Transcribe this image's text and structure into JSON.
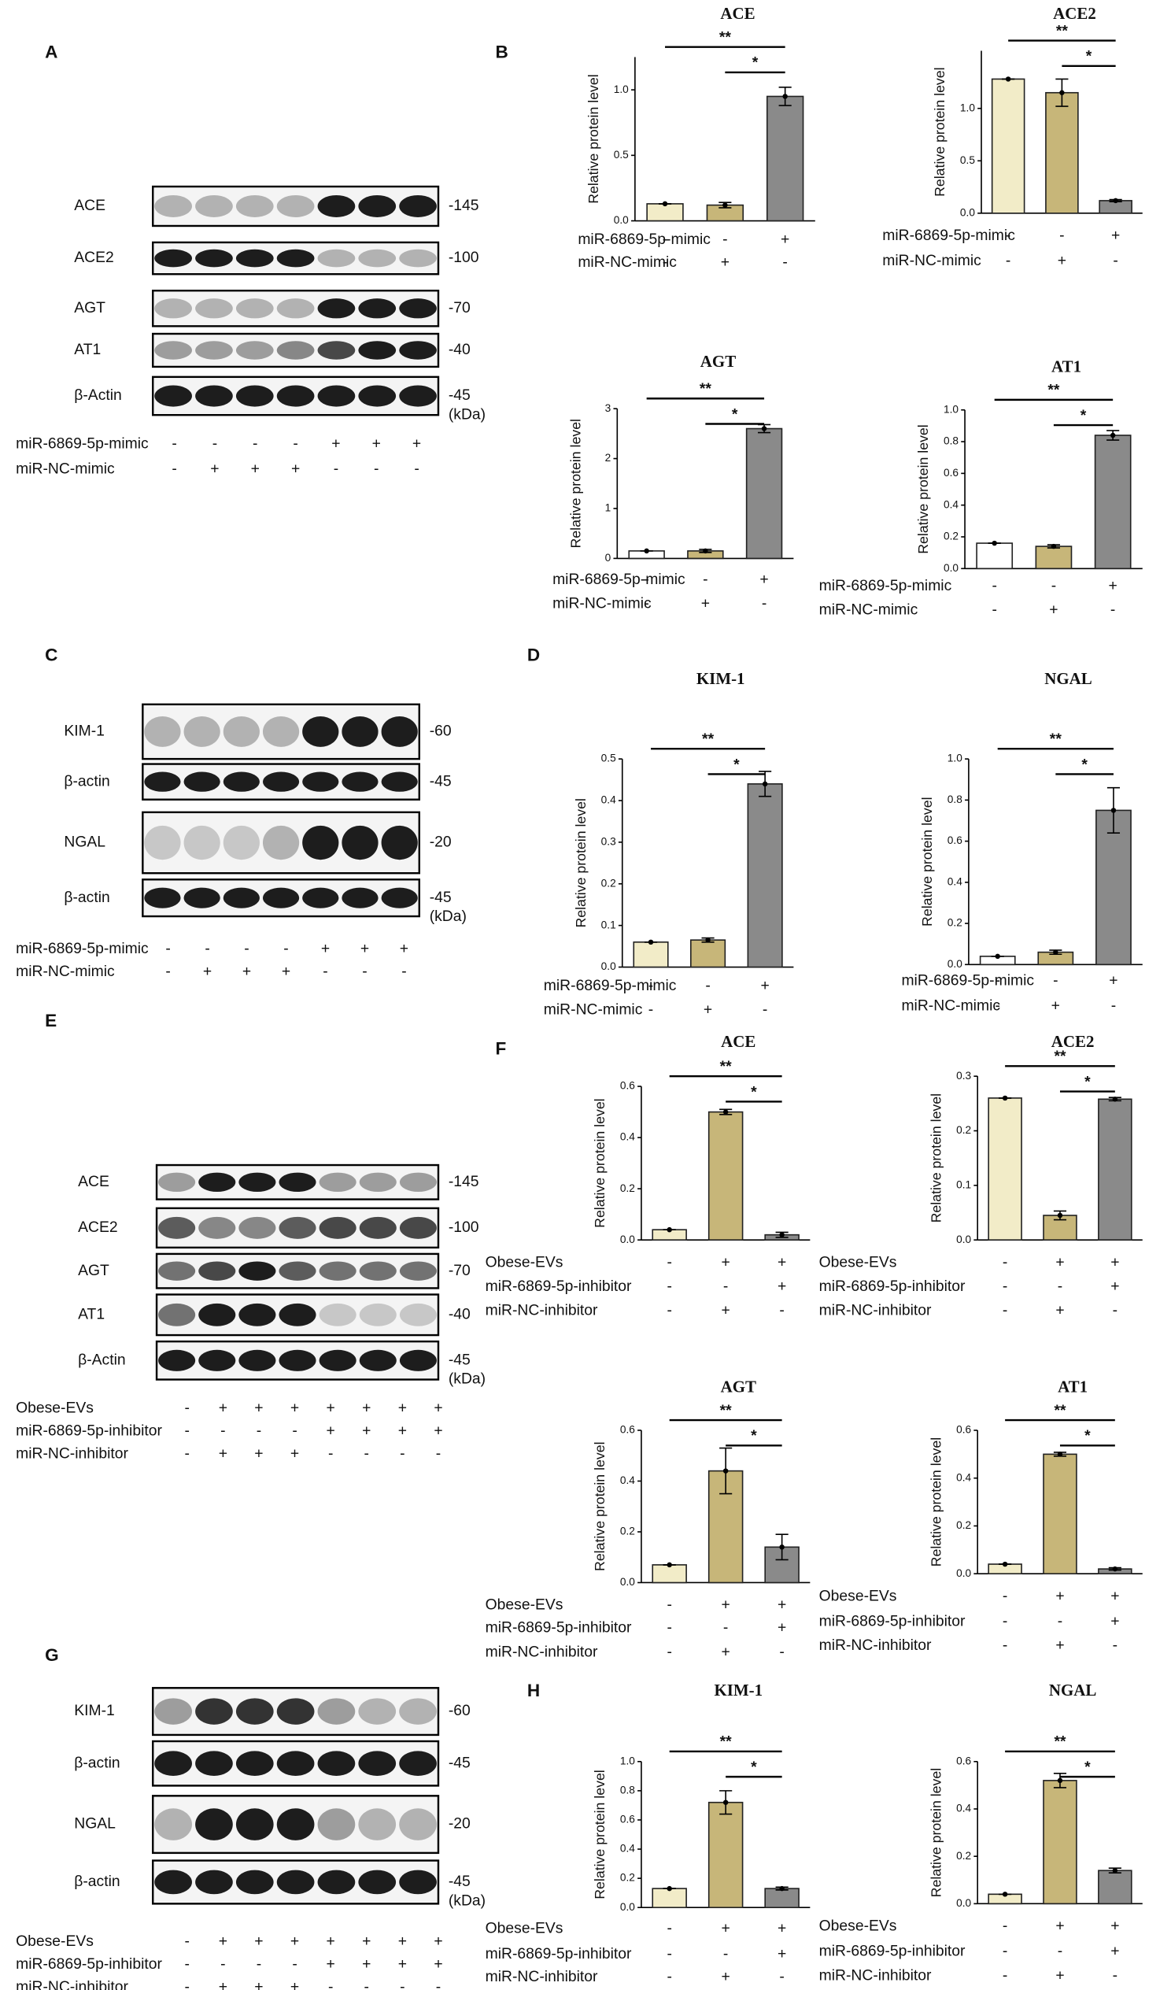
{
  "panel_labels": [
    "A",
    "B",
    "C",
    "D",
    "E",
    "F",
    "G",
    "H"
  ],
  "blots": [
    {
      "rows": [
        {
          "label": "ACE",
          "kda": "-145"
        },
        {
          "label": "ACE2",
          "kda": "-100"
        },
        {
          "label": "AGT",
          "kda": "-70"
        },
        {
          "label": "AT1",
          "kda": "-40"
        },
        {
          "label": "β-Actin",
          "kda": "-45"
        }
      ],
      "unit": "(kDa)",
      "conditions": [
        {
          "label": "miR-6869-5p-mimic",
          "signs": [
            "-",
            "-",
            "-",
            "-",
            "+",
            "+",
            "+"
          ]
        },
        {
          "label": "miR-NC-mimic",
          "signs": [
            "-",
            "+",
            "+",
            "+",
            "-",
            "-",
            "-"
          ]
        }
      ]
    },
    {
      "rows": [
        {
          "label": "KIM-1",
          "kda": "-60"
        },
        {
          "label": "β-actin",
          "kda": "-45"
        },
        {
          "label": "NGAL",
          "kda": "-20"
        },
        {
          "label": "β-actin",
          "kda": "-45"
        }
      ],
      "unit": "(kDa)",
      "conditions": [
        {
          "label": "miR-6869-5p-mimic",
          "signs": [
            "-",
            "-",
            "-",
            "-",
            "+",
            "+",
            "+"
          ]
        },
        {
          "label": "miR-NC-mimic",
          "signs": [
            "-",
            "+",
            "+",
            "+",
            "-",
            "-",
            "-"
          ]
        }
      ]
    },
    {
      "rows": [
        {
          "label": "ACE",
          "kda": "-145"
        },
        {
          "label": "ACE2",
          "kda": "-100"
        },
        {
          "label": "AGT",
          "kda": "-70"
        },
        {
          "label": "AT1",
          "kda": "-40"
        },
        {
          "label": "β-Actin",
          "kda": "-45"
        }
      ],
      "unit": "(kDa)",
      "conditions": [
        {
          "label": "Obese-EVs",
          "signs": [
            "-",
            "+",
            "+",
            "+",
            "+",
            "+",
            "+",
            "+"
          ]
        },
        {
          "label": "miR-6869-5p-inhibitor",
          "signs": [
            "-",
            "-",
            "-",
            "-",
            "+",
            "+",
            "+",
            "+"
          ]
        },
        {
          "label": "miR-NC-inhibitor",
          "signs": [
            "-",
            "+",
            "+",
            "+",
            "-",
            "-",
            "-",
            "-"
          ]
        }
      ]
    },
    {
      "rows": [
        {
          "label": "KIM-1",
          "kda": "-60"
        },
        {
          "label": "β-actin",
          "kda": "-45"
        },
        {
          "label": "NGAL",
          "kda": "-20"
        },
        {
          "label": "β-actin",
          "kda": "-45"
        }
      ],
      "unit": "(kDa)",
      "conditions": [
        {
          "label": "Obese-EVs",
          "signs": [
            "-",
            "+",
            "+",
            "+",
            "+",
            "+",
            "+",
            "+"
          ]
        },
        {
          "label": "miR-6869-5p-inhibitor",
          "signs": [
            "-",
            "-",
            "-",
            "-",
            "+",
            "+",
            "+",
            "+"
          ]
        },
        {
          "label": "miR-NC-inhibitor",
          "signs": [
            "-",
            "+",
            "+",
            "+",
            "-",
            "-",
            "-",
            "-"
          ]
        }
      ]
    }
  ],
  "chart_data": [
    {
      "type": "bar",
      "title": "ACE",
      "ylabel": "Relative protein level",
      "values": [
        0.13,
        0.12,
        0.95
      ],
      "errors": [
        0,
        0.02,
        0.07
      ],
      "colors": [
        "#f2ecc8",
        "#c7b679",
        "#8a8a8a"
      ],
      "ylim": [
        0,
        1.25
      ],
      "yticks": [
        {
          "value": 0,
          "label": "0.0"
        },
        0.5,
        {
          "value": 1,
          "label": "1.0"
        }
      ],
      "annotations": [
        "**",
        "*"
      ],
      "conditions": [
        {
          "label": "miR-6869-5p-mimic",
          "signs": [
            "-",
            "-",
            "+"
          ]
        },
        {
          "label": "miR-NC-mimic",
          "signs": [
            "-",
            "+",
            "-"
          ]
        }
      ]
    },
    {
      "type": "bar",
      "title": "ACE2",
      "ylabel": "Relative protein level",
      "values": [
        1.28,
        1.15,
        0.12
      ],
      "errors": [
        0,
        0.13,
        0.01
      ],
      "colors": [
        "#f2ecc8",
        "#c7b679",
        "#8a8a8a"
      ],
      "ylim": [
        0,
        1.55
      ],
      "yticks": [
        {
          "value": 0,
          "label": "0.0"
        },
        0.5,
        {
          "value": 1,
          "label": "1.0"
        }
      ],
      "annotations": [
        "**",
        "*"
      ],
      "conditions": [
        {
          "label": "miR-6869-5p-mimic",
          "signs": [
            "-",
            "-",
            "+"
          ]
        },
        {
          "label": "miR-NC-mimic",
          "signs": [
            "-",
            "+",
            "-"
          ]
        }
      ]
    },
    {
      "type": "bar",
      "title": "AGT",
      "ylabel": "Relative protein level",
      "values": [
        0.15,
        0.15,
        2.6
      ],
      "errors": [
        0,
        0.03,
        0.08
      ],
      "colors": [
        "#ffffff",
        "#c7b679",
        "#8a8a8a"
      ],
      "ylim": [
        0,
        3
      ],
      "yticks": [
        0,
        1,
        2,
        3
      ],
      "annotations": [
        "**",
        "*"
      ],
      "conditions": [
        {
          "label": "miR-6869-5p-mimic",
          "signs": [
            "-",
            "-",
            "+"
          ]
        },
        {
          "label": "miR-NC-mimic",
          "signs": [
            "-",
            "+",
            "-"
          ]
        }
      ]
    },
    {
      "type": "bar",
      "title": "AT1",
      "ylabel": "Relative protein level",
      "values": [
        0.16,
        0.14,
        0.84
      ],
      "errors": [
        0,
        0.01,
        0.03
      ],
      "colors": [
        "#ffffff",
        "#c7b679",
        "#8a8a8a"
      ],
      "ylim": [
        0,
        1
      ],
      "yticks": [
        {
          "value": 0,
          "label": "0.0"
        },
        0.2,
        0.4,
        0.6,
        0.8,
        {
          "value": 1,
          "label": "1.0"
        }
      ],
      "annotations": [
        "**",
        "*"
      ],
      "conditions": [
        {
          "label": "miR-6869-5p-mimic",
          "signs": [
            "-",
            "-",
            "+"
          ]
        },
        {
          "label": "miR-NC-mimic",
          "signs": [
            "-",
            "+",
            "-"
          ]
        }
      ]
    },
    {
      "type": "bar",
      "title": "KIM-1",
      "ylabel": "Relative protein level",
      "values": [
        0.06,
        0.065,
        0.44
      ],
      "errors": [
        0,
        0.005,
        0.03
      ],
      "colors": [
        "#f2ecc8",
        "#c7b679",
        "#8a8a8a"
      ],
      "ylim": [
        0,
        0.5
      ],
      "yticks": [
        {
          "value": 0,
          "label": "0.0"
        },
        0.1,
        0.2,
        0.3,
        0.4,
        0.5
      ],
      "annotations": [
        "**",
        "*"
      ],
      "conditions": [
        {
          "label": "miR-6869-5p-mimic",
          "signs": [
            "-",
            "-",
            "+"
          ]
        },
        {
          "label": "miR-NC-mimic",
          "signs": [
            "-",
            "+",
            "-"
          ]
        }
      ]
    },
    {
      "type": "bar",
      "title": "NGAL",
      "ylabel": "Relative protein level",
      "values": [
        0.04,
        0.06,
        0.75
      ],
      "errors": [
        0,
        0.01,
        0.11
      ],
      "colors": [
        "#ffffff",
        "#c7b679",
        "#8a8a8a"
      ],
      "ylim": [
        0,
        1
      ],
      "yticks": [
        {
          "value": 0,
          "label": "0.0"
        },
        0.2,
        0.4,
        0.6,
        0.8,
        {
          "value": 1,
          "label": "1.0"
        }
      ],
      "annotations": [
        "**",
        "*"
      ],
      "conditions": [
        {
          "label": "miR-6869-5p-mimic",
          "signs": [
            "-",
            "-",
            "+"
          ]
        },
        {
          "label": "miR-NC-mimic",
          "signs": [
            "-",
            "+",
            "-"
          ]
        }
      ]
    },
    {
      "type": "bar",
      "title": "ACE",
      "ylabel": "Relative protein level",
      "values": [
        0.04,
        0.5,
        0.02
      ],
      "errors": [
        0,
        0.01,
        0.01
      ],
      "colors": [
        "#f2ecc8",
        "#c7b679",
        "#8a8a8a"
      ],
      "ylim": [
        0,
        0.6
      ],
      "yticks": [
        {
          "value": 0,
          "label": "0.0"
        },
        0.2,
        0.4,
        0.6
      ],
      "annotations": [
        "**",
        "*"
      ],
      "conditions": [
        {
          "label": "Obese-EVs",
          "signs": [
            "-",
            "+",
            "+"
          ]
        },
        {
          "label": "miR-6869-5p-inhibitor",
          "signs": [
            "-",
            "-",
            "+"
          ]
        },
        {
          "label": "miR-NC-inhibitor",
          "signs": [
            "-",
            "+",
            "-"
          ]
        }
      ]
    },
    {
      "type": "bar",
      "title": "ACE2",
      "ylabel": "Relative protein level",
      "values": [
        0.26,
        0.045,
        0.258
      ],
      "errors": [
        0,
        0.008,
        0.003
      ],
      "colors": [
        "#f2ecc8",
        "#c7b679",
        "#8a8a8a"
      ],
      "ylim": [
        0,
        0.3
      ],
      "yticks": [
        {
          "value": 0,
          "label": "0.0"
        },
        0.1,
        0.2,
        0.3
      ],
      "annotations": [
        "**",
        "*"
      ],
      "conditions": [
        {
          "label": "Obese-EVs",
          "signs": [
            "-",
            "+",
            "+"
          ]
        },
        {
          "label": "miR-6869-5p-inhibitor",
          "signs": [
            "-",
            "-",
            "+"
          ]
        },
        {
          "label": "miR-NC-inhibitor",
          "signs": [
            "-",
            "+",
            "-"
          ]
        }
      ]
    },
    {
      "type": "bar",
      "title": "AGT",
      "ylabel": "Relative protein level",
      "values": [
        0.07,
        0.44,
        0.14
      ],
      "errors": [
        0,
        0.09,
        0.05
      ],
      "colors": [
        "#f2ecc8",
        "#c7b679",
        "#8a8a8a"
      ],
      "ylim": [
        0,
        0.6
      ],
      "yticks": [
        {
          "value": 0,
          "label": "0.0"
        },
        0.2,
        0.4,
        0.6
      ],
      "annotations": [
        "**",
        "*"
      ],
      "conditions": [
        {
          "label": "Obese-EVs",
          "signs": [
            "-",
            "+",
            "+"
          ]
        },
        {
          "label": "miR-6869-5p-inhibitor",
          "signs": [
            "-",
            "-",
            "+"
          ]
        },
        {
          "label": "miR-NC-inhibitor",
          "signs": [
            "-",
            "+",
            "-"
          ]
        }
      ]
    },
    {
      "type": "bar",
      "title": "AT1",
      "ylabel": "Relative protein level",
      "values": [
        0.04,
        0.5,
        0.02
      ],
      "errors": [
        0,
        0.008,
        0.005
      ],
      "colors": [
        "#f2ecc8",
        "#c7b679",
        "#8a8a8a"
      ],
      "ylim": [
        0,
        0.6
      ],
      "yticks": [
        {
          "value": 0,
          "label": "0.0"
        },
        0.2,
        0.4,
        0.6
      ],
      "annotations": [
        "**",
        "*"
      ],
      "conditions": [
        {
          "label": "Obese-EVs",
          "signs": [
            "-",
            "+",
            "+"
          ]
        },
        {
          "label": "miR-6869-5p-inhibitor",
          "signs": [
            "-",
            "-",
            "+"
          ]
        },
        {
          "label": "miR-NC-inhibitor",
          "signs": [
            "-",
            "+",
            "-"
          ]
        }
      ]
    },
    {
      "type": "bar",
      "title": "KIM-1",
      "ylabel": "Relative protein level",
      "values": [
        0.13,
        0.72,
        0.13
      ],
      "errors": [
        0,
        0.08,
        0.01
      ],
      "colors": [
        "#f2ecc8",
        "#c7b679",
        "#8a8a8a"
      ],
      "ylim": [
        0,
        1
      ],
      "yticks": [
        {
          "value": 0,
          "label": "0.0"
        },
        0.2,
        0.4,
        0.6,
        0.8,
        {
          "value": 1,
          "label": "1.0"
        }
      ],
      "annotations": [
        "**",
        "*"
      ],
      "conditions": [
        {
          "label": "Obese-EVs",
          "signs": [
            "-",
            "+",
            "+"
          ]
        },
        {
          "label": "miR-6869-5p-inhibitor",
          "signs": [
            "-",
            "-",
            "+"
          ]
        },
        {
          "label": "miR-NC-inhibitor",
          "signs": [
            "-",
            "+",
            "-"
          ]
        }
      ]
    },
    {
      "type": "bar",
      "title": "NGAL",
      "ylabel": "Relative protein level",
      "values": [
        0.04,
        0.52,
        0.14
      ],
      "errors": [
        0,
        0.03,
        0.01
      ],
      "colors": [
        "#f2ecc8",
        "#c7b679",
        "#8a8a8a"
      ],
      "ylim": [
        0,
        0.6
      ],
      "yticks": [
        {
          "value": 0,
          "label": "0.0"
        },
        0.2,
        0.4,
        0.6
      ],
      "annotations": [
        "**",
        "*"
      ],
      "conditions": [
        {
          "label": "Obese-EVs",
          "signs": [
            "-",
            "+",
            "+"
          ]
        },
        {
          "label": "miR-6869-5p-inhibitor",
          "signs": [
            "-",
            "-",
            "+"
          ]
        },
        {
          "label": "miR-NC-inhibitor",
          "signs": [
            "-",
            "+",
            "-"
          ]
        }
      ]
    }
  ]
}
